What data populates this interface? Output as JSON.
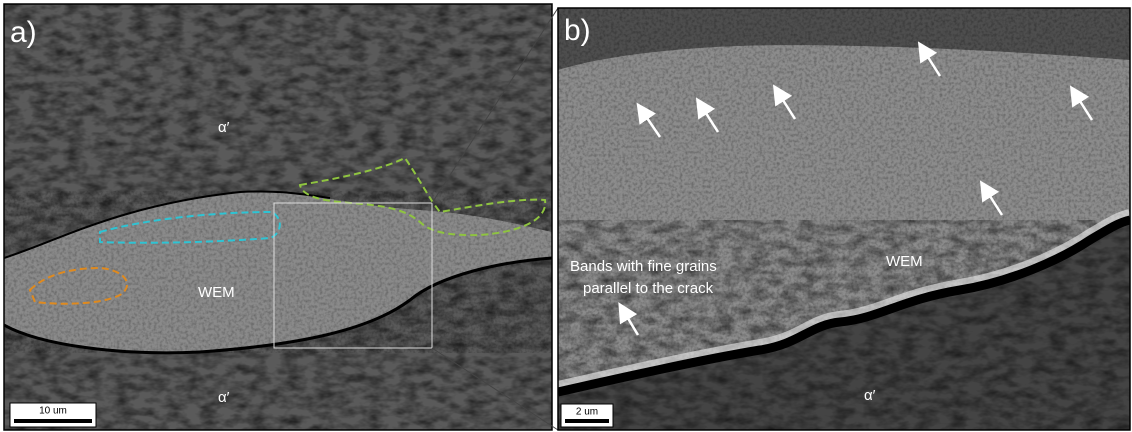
{
  "panels": [
    {
      "label": "a)",
      "annotations": [
        "α′",
        "WEM",
        "α′"
      ],
      "scale_bar": "10 um"
    },
    {
      "label": "b)",
      "annotations": [
        "Bands with fine grains",
        "parallel to the crack",
        "WEM",
        "α′"
      ],
      "scale_bar": "2 um"
    }
  ]
}
